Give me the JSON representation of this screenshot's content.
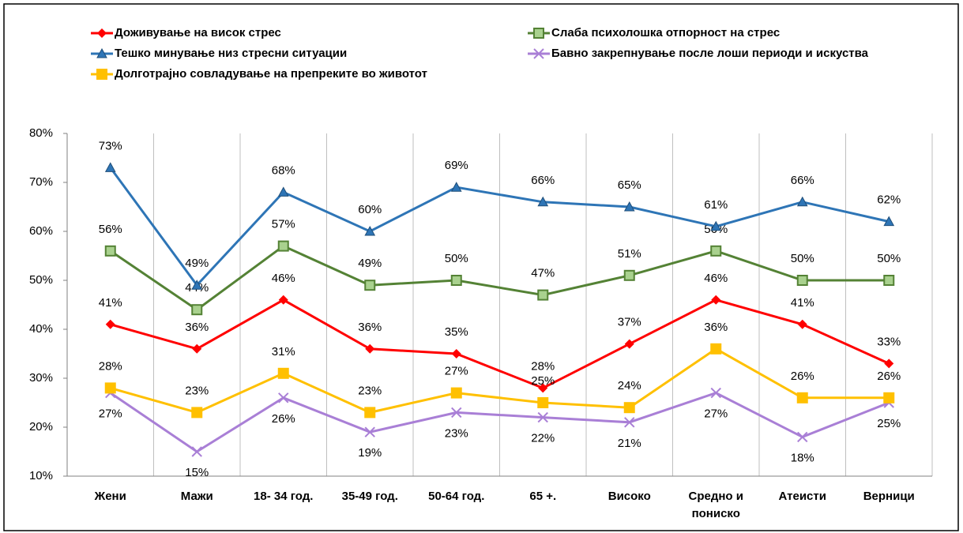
{
  "chart_data": {
    "type": "line",
    "categories": [
      "Жени",
      "Мажи",
      "18- 34 год.",
      "35-49 год.",
      "50-64 год.",
      "65 +.",
      "Високо",
      "Средно и пониско",
      "Атеисти",
      "Верници"
    ],
    "series": [
      {
        "name": "Доживување на висок стрес",
        "color": "#ff0000",
        "marker": "diamond",
        "label_position": "above",
        "values": [
          41,
          36,
          46,
          36,
          35,
          28,
          37,
          46,
          41,
          33
        ],
        "value_labels": [
          "41%",
          "36%",
          "46%",
          "36%",
          "35%",
          "28%",
          "37%",
          "46%",
          "41%",
          "33%"
        ]
      },
      {
        "name": "Слаба психолошка отпорност на стрес",
        "color": "#548235",
        "marker": "square",
        "label_position": "above",
        "values": [
          56,
          44,
          57,
          49,
          50,
          47,
          51,
          56,
          50,
          50
        ],
        "value_labels": [
          "56%",
          "44%",
          "57%",
          "49%",
          "50%",
          "47%",
          "51%",
          "56%",
          "50%",
          "50%"
        ]
      },
      {
        "name": "Тешко минување низ стресни ситуации",
        "color": "#2e75b6",
        "marker": "triangle",
        "label_position": "above",
        "values": [
          73,
          49,
          68,
          60,
          69,
          66,
          65,
          61,
          66,
          62
        ],
        "value_labels": [
          "73%",
          "49%",
          "68%",
          "60%",
          "69%",
          "66%",
          "65%",
          "61%",
          "66%",
          "62%"
        ]
      },
      {
        "name": "Бавно закрепнување после лоши периоди и искуства",
        "color": "#a97fd6",
        "marker": "x",
        "label_position": "below",
        "values": [
          27,
          15,
          26,
          19,
          23,
          22,
          21,
          27,
          18,
          25
        ],
        "value_labels": [
          "27%",
          "15%",
          "26%",
          "19%",
          "23%",
          "22%",
          "21%",
          "27%",
          "18%",
          "25%"
        ]
      },
      {
        "name": "Долготрајно совладување на препреките во животот",
        "color": "#ffc000",
        "marker": "square",
        "label_position": "above",
        "values": [
          28,
          23,
          31,
          23,
          27,
          25,
          24,
          36,
          26,
          26
        ],
        "value_labels": [
          "28%",
          "23%",
          "31%",
          "23%",
          "27%",
          "25%",
          "24%",
          "36%",
          "26%",
          "26%"
        ]
      }
    ],
    "ylim": [
      10,
      80
    ],
    "yticks": [
      {
        "value": 10,
        "label": "10%"
      },
      {
        "value": 20,
        "label": "20%"
      },
      {
        "value": 30,
        "label": "30%"
      },
      {
        "value": 40,
        "label": "40%"
      },
      {
        "value": 50,
        "label": "50%"
      },
      {
        "value": 60,
        "label": "60%"
      },
      {
        "value": 70,
        "label": "70%"
      },
      {
        "value": 80,
        "label": "80%"
      }
    ],
    "grid": "x",
    "legend": "top"
  }
}
